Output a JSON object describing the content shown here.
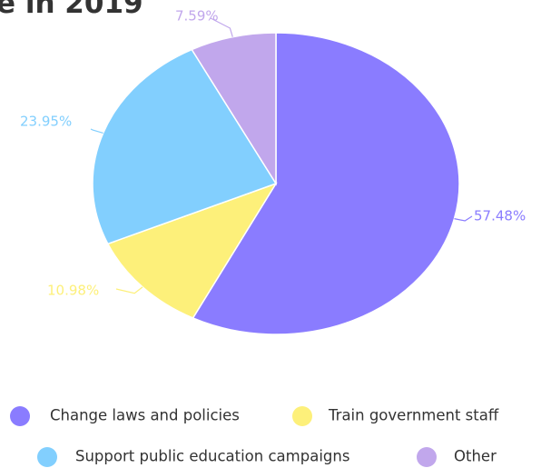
{
  "chart_data": {
    "type": "pie",
    "title": "e in 2019",
    "categories": [
      "Change laws and policies",
      "Train government staff",
      "Support public education campaigns",
      "Other"
    ],
    "values": [
      57.48,
      10.98,
      23.95,
      7.59
    ],
    "value_labels": [
      "57.48%",
      "10.98%",
      "23.95%",
      "7.59%"
    ],
    "colors": [
      "#8a7cff",
      "#fdf07a",
      "#82cffe",
      "#c1a7ec"
    ]
  }
}
